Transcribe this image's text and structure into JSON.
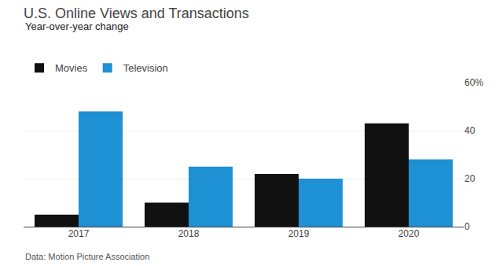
{
  "chart_data": {
    "type": "bar",
    "title": "U.S. Online Views and Transactions",
    "subtitle": "Year-over-year change",
    "annotations": [
      "Data: Motion Picture Association"
    ],
    "categories": [
      "2017",
      "2018",
      "2019",
      "2020"
    ],
    "series": [
      {
        "name": "Movies",
        "color": "#111111",
        "values": [
          5,
          10,
          22,
          43
        ]
      },
      {
        "name": "Television",
        "color": "#1e90d4",
        "values": [
          48,
          25,
          20,
          28
        ]
      }
    ],
    "ylim": [
      0,
      60
    ],
    "yticks": [
      0,
      20,
      40,
      {
        "value": 60,
        "label": "60%"
      }
    ],
    "grid": true,
    "legend": "top left"
  }
}
